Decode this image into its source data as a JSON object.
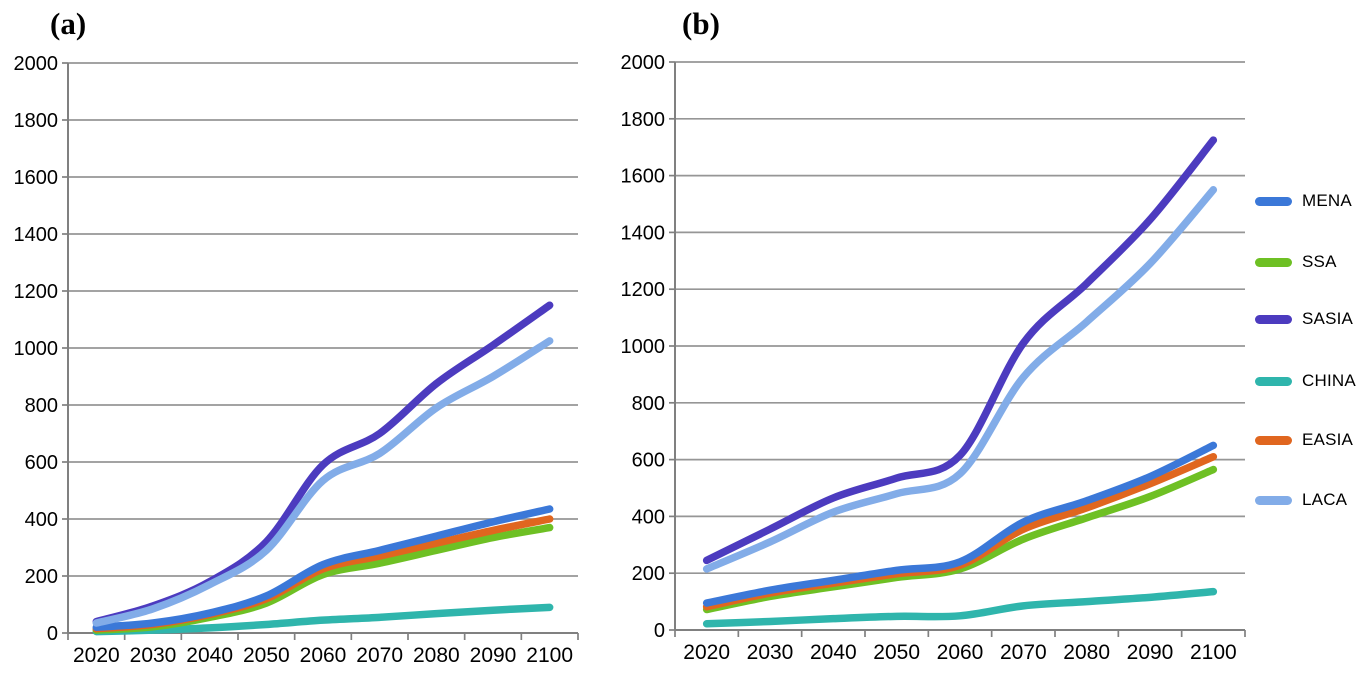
{
  "figure": {
    "background": "#ffffff",
    "axis_color": "#808080",
    "grid_color": "#969696",
    "text_color": "#000000"
  },
  "chart_data": [
    {
      "id": "a",
      "type": "line",
      "title": "(a)",
      "x": [
        2020,
        2030,
        2040,
        2050,
        2060,
        2070,
        2080,
        2090,
        2100
      ],
      "xlabel": "",
      "ylabel": "",
      "ylim": [
        0,
        2000
      ],
      "ytick_step": 200,
      "grid": true,
      "smoothed_lines": true,
      "series": [
        {
          "name": "MENA",
          "color": "#3B78D8",
          "values": [
            20,
            35,
            70,
            130,
            240,
            290,
            340,
            390,
            435
          ]
        },
        {
          "name": "SSA",
          "color": "#6EC024",
          "values": [
            10,
            22,
            55,
            105,
            205,
            245,
            290,
            335,
            370
          ]
        },
        {
          "name": "SASIA",
          "color": "#4C3BBF",
          "values": [
            40,
            95,
            180,
            320,
            590,
            700,
            875,
            1010,
            1150
          ]
        },
        {
          "name": "CHINA",
          "color": "#2FB5AC",
          "values": [
            5,
            10,
            18,
            30,
            45,
            55,
            68,
            80,
            90
          ]
        },
        {
          "name": "EASIA",
          "color": "#E0661F",
          "values": [
            15,
            30,
            65,
            120,
            225,
            270,
            315,
            360,
            400
          ]
        },
        {
          "name": "LACA",
          "color": "#82ACE8",
          "values": [
            35,
            85,
            170,
            290,
            535,
            630,
            790,
            900,
            1025
          ]
        }
      ]
    },
    {
      "id": "b",
      "type": "line",
      "title": "(b)",
      "x": [
        2020,
        2030,
        2040,
        2050,
        2060,
        2070,
        2080,
        2090,
        2100
      ],
      "xlabel": "",
      "ylabel": "",
      "ylim": [
        0,
        2000
      ],
      "ytick_step": 200,
      "grid": true,
      "smoothed_lines": true,
      "series": [
        {
          "name": "MENA",
          "color": "#3B78D8",
          "values": [
            95,
            140,
            175,
            210,
            240,
            380,
            455,
            540,
            650
          ]
        },
        {
          "name": "SSA",
          "color": "#6EC024",
          "values": [
            72,
            118,
            152,
            185,
            215,
            320,
            395,
            470,
            565
          ]
        },
        {
          "name": "SASIA",
          "color": "#4C3BBF",
          "values": [
            245,
            355,
            465,
            535,
            615,
            1010,
            1220,
            1445,
            1725
          ]
        },
        {
          "name": "CHINA",
          "color": "#2FB5AC",
          "values": [
            22,
            30,
            40,
            48,
            50,
            85,
            100,
            115,
            135
          ]
        },
        {
          "name": "EASIA",
          "color": "#E0661F",
          "values": [
            82,
            130,
            165,
            198,
            228,
            355,
            430,
            515,
            610
          ]
        },
        {
          "name": "LACA",
          "color": "#82ACE8",
          "values": [
            215,
            310,
            415,
            480,
            550,
            890,
            1085,
            1290,
            1550
          ]
        }
      ]
    }
  ],
  "legend": {
    "position": "right",
    "items": [
      {
        "label": "MENA",
        "color": "#3B78D8"
      },
      {
        "label": "SSA",
        "color": "#6EC024"
      },
      {
        "label": "SASIA",
        "color": "#4C3BBF"
      },
      {
        "label": "CHINA",
        "color": "#2FB5AC"
      },
      {
        "label": "EASIA",
        "color": "#E0661F"
      },
      {
        "label": "LACA",
        "color": "#82ACE8"
      }
    ]
  }
}
